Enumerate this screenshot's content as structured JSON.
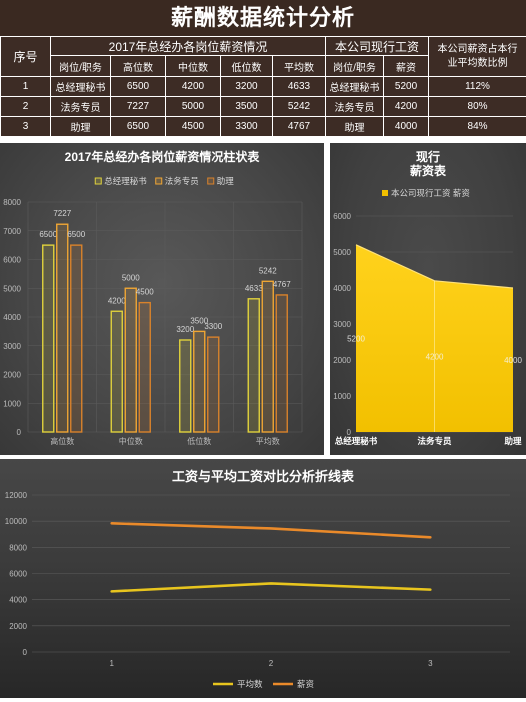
{
  "title": "薪酬数据统计分析",
  "colors": {
    "banner_bg": "#3a2921",
    "table_bg": "#3d2c25",
    "table_text": "#ffffff",
    "table_border": "#ffffff"
  },
  "table": {
    "header": {
      "index": "序号",
      "group_2017": "2017年总经办各岗位薪资情况",
      "group_current": "本公司现行工资",
      "ratio": "本公司薪资占本行业平均数比例",
      "position": "岗位/职务",
      "high": "高位数",
      "mid": "中位数",
      "low": "低位数",
      "avg": "平均数",
      "current_position": "岗位/职务",
      "salary": "薪资"
    },
    "rows": [
      {
        "index": "1",
        "position": "总经理秘书",
        "high": "6500",
        "mid": "4200",
        "low": "3200",
        "avg": "4633",
        "current_position": "总经理秘书",
        "salary": "5200",
        "ratio": "112%"
      },
      {
        "index": "2",
        "position": "法务专员",
        "high": "7227",
        "mid": "5000",
        "low": "3500",
        "avg": "5242",
        "current_position": "法务专员",
        "salary": "4200",
        "ratio": "80%"
      },
      {
        "index": "3",
        "position": "助理",
        "high": "6500",
        "mid": "4500",
        "low": "3300",
        "avg": "4767",
        "current_position": "助理",
        "salary": "4000",
        "ratio": "84%"
      }
    ]
  },
  "chart_data": [
    {
      "type": "bar",
      "title": "2017年总经办各岗位薪资情况柱状表",
      "categories": [
        "高位数",
        "中位数",
        "低位数",
        "平均数"
      ],
      "series": [
        {
          "name": "总经理秘书",
          "values": [
            6500,
            4200,
            3200,
            4633
          ],
          "color": "#e0d23c"
        },
        {
          "name": "法务专员",
          "values": [
            7227,
            5000,
            3500,
            5242
          ],
          "color": "#f0a634"
        },
        {
          "name": "助理",
          "values": [
            6500,
            4500,
            3300,
            4767
          ],
          "color": "#d9822b"
        }
      ],
      "ylim": [
        0,
        8000
      ],
      "yticks": [
        0,
        1000,
        2000,
        3000,
        4000,
        5000,
        6000,
        7000,
        8000
      ],
      "grid": true,
      "legend": "top"
    },
    {
      "type": "area",
      "title_lines": [
        "现行",
        "薪资表"
      ],
      "categories": [
        "总经理秘书",
        "法务专员",
        "助理"
      ],
      "series": [
        {
          "name": "本公司现行工资 薪资",
          "values": [
            5200,
            4200,
            4000
          ],
          "color": "#f2c000"
        }
      ],
      "ylim": [
        0,
        6000
      ],
      "yticks": [
        0,
        1000,
        2000,
        3000,
        4000,
        5000,
        6000
      ],
      "grid": true,
      "legend": "top"
    },
    {
      "type": "line",
      "title": "工资与平均工资对比分析折线表",
      "categories": [
        "1",
        "2",
        "3"
      ],
      "stacked": true,
      "series": [
        {
          "name": "平均数",
          "values": [
            4633,
            5242,
            4767
          ],
          "color": "#e8c51e"
        },
        {
          "name": "薪资",
          "values": [
            5200,
            4200,
            4000
          ],
          "color": "#ea8a2a"
        }
      ],
      "ylim": [
        0,
        12000
      ],
      "yticks": [
        0,
        2000,
        4000,
        6000,
        8000,
        10000,
        12000
      ],
      "grid": true,
      "legend": "bottom"
    }
  ]
}
